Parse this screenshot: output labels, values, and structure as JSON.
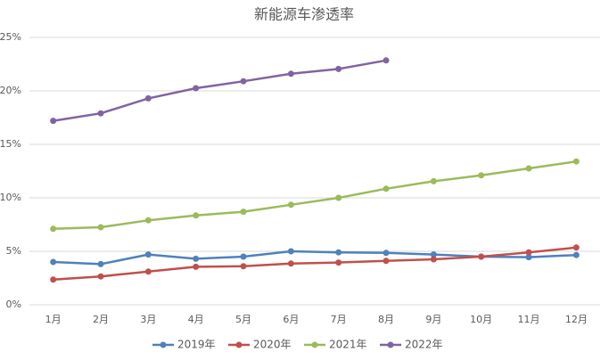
{
  "chart_data": {
    "type": "line",
    "title": "新能源车渗透率",
    "categories": [
      "1月",
      "2月",
      "3月",
      "4月",
      "5月",
      "6月",
      "7月",
      "8月",
      "9月",
      "10月",
      "11月",
      "12月"
    ],
    "series": [
      {
        "name": "2019年",
        "color": "#4f81bd",
        "values": [
          4.0,
          3.8,
          4.7,
          4.3,
          4.5,
          5.0,
          4.9,
          4.85,
          4.7,
          4.5,
          4.45,
          4.65
        ]
      },
      {
        "name": "2020年",
        "color": "#c0504d",
        "values": [
          2.35,
          2.65,
          3.1,
          3.55,
          3.6,
          3.85,
          3.95,
          4.1,
          4.25,
          4.5,
          4.9,
          5.35
        ]
      },
      {
        "name": "2021年",
        "color": "#9bbb59",
        "values": [
          7.1,
          7.25,
          7.9,
          8.35,
          8.7,
          9.35,
          10.0,
          10.85,
          11.55,
          12.1,
          12.75,
          13.4
        ]
      },
      {
        "name": "2022年",
        "color": "#8064a2",
        "values": [
          17.2,
          17.9,
          19.3,
          20.25,
          20.9,
          21.6,
          22.05,
          22.85,
          null,
          null,
          null,
          null
        ]
      }
    ],
    "ylim": [
      0,
      25
    ],
    "yticks": [
      {
        "value": 0,
        "label": "0%"
      },
      {
        "value": 5,
        "label": "5%"
      },
      {
        "value": 10,
        "label": "10%"
      },
      {
        "value": 15,
        "label": "15%"
      },
      {
        "value": 20,
        "label": "20%"
      },
      {
        "value": 25,
        "label": "25%"
      }
    ],
    "grid": true,
    "legend": "bottom"
  }
}
